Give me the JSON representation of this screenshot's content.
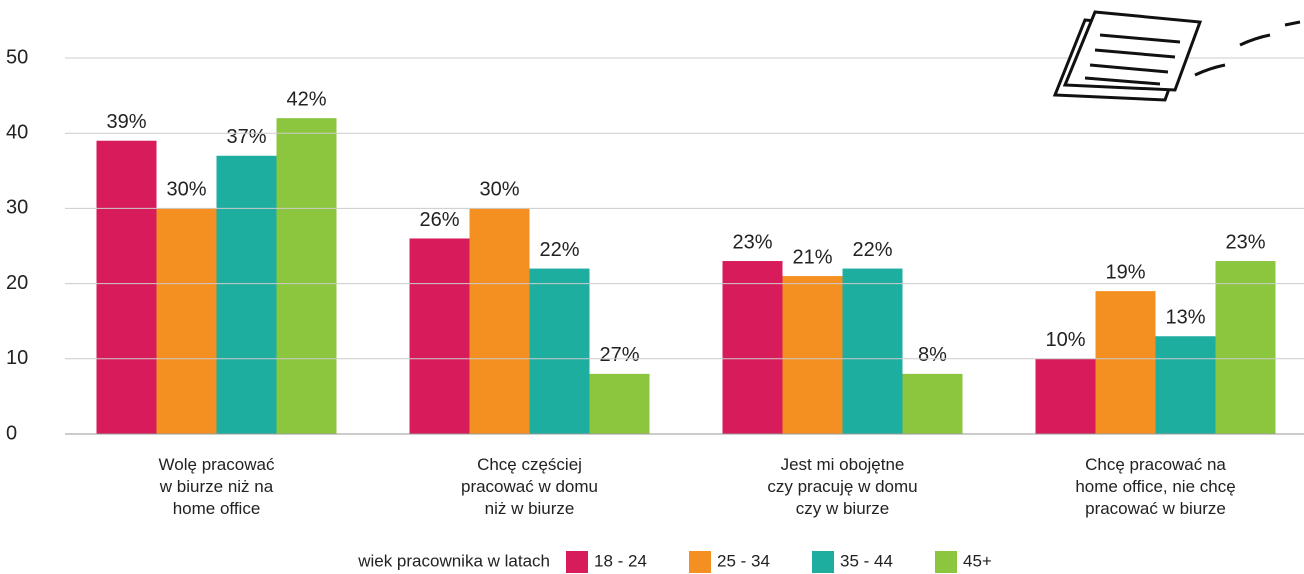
{
  "chart_data": {
    "type": "bar",
    "categories": [
      "Wolę pracować\nw biurze niż na\nhome office",
      "Chcę częściej\npracować w domu\nniż w biurze",
      "Jest mi obojętne\nczy pracuję w domu\nczy w biurze",
      "Chcę pracować na\nhome office, nie chcę\npracować w biurze"
    ],
    "series": [
      {
        "name": "18 - 24",
        "color": "#d81b5b",
        "values": [
          39,
          26,
          23,
          10
        ],
        "value_labels": [
          "39%",
          "26%",
          "23%",
          "10%"
        ]
      },
      {
        "name": "25 - 34",
        "color": "#f39021",
        "values": [
          30,
          30,
          21,
          19
        ],
        "value_labels": [
          "30%",
          "30%",
          "21%",
          "19%"
        ]
      },
      {
        "name": "35 - 44",
        "color": "#1eaea0",
        "values": [
          37,
          22,
          22,
          13
        ],
        "value_labels": [
          "37%",
          "22%",
          "22%",
          "13%"
        ]
      },
      {
        "name": "45+",
        "color": "#8cc63f",
        "values": [
          42,
          8,
          8,
          23
        ],
        "value_labels": [
          "42%",
          null,
          "8%",
          "23%"
        ]
      }
    ],
    "annotation": "27%",
    "legend_title": "wiek pracownika w latach",
    "ylim": [
      0,
      50
    ],
    "yticks": [
      0,
      10,
      20,
      30,
      40,
      50
    ],
    "grid": true,
    "legend": "bottom"
  }
}
